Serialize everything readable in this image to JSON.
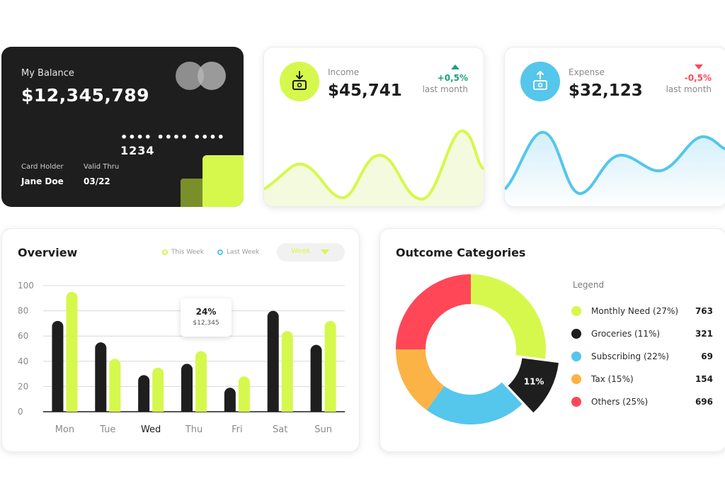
{
  "balance_card": {
    "label": "My Balance",
    "amount": "$12,345,789",
    "card_number": "•••• •••• •••• 1234",
    "holder_label": "Card Holder",
    "holder_name": "Jane Doe",
    "valid_label": "Valid Thru",
    "valid_value": "03/22"
  },
  "income": {
    "title": "Income",
    "value": "$45,741",
    "change": "+0,5%",
    "sub": "last month",
    "accent": "#d6f84c",
    "icon": "download-wallet-icon"
  },
  "expense": {
    "title": "Expense",
    "value": "$32,123",
    "change": "-0,5%",
    "sub": "last month",
    "accent": "#55c6ec",
    "icon": "upload-wallet-icon"
  },
  "overview": {
    "title": "Overview",
    "legend_this": "This Week",
    "legend_last": "Last Week",
    "select_value": "Week",
    "tooltip_percent": "24%",
    "tooltip_amount": "$12,345",
    "y_ticks": [
      "100",
      "80",
      "60",
      "40",
      "20",
      "0"
    ],
    "days": [
      "Mon",
      "Tue",
      "Wed",
      "Thu",
      "Fri",
      "Sat",
      "Sun"
    ]
  },
  "chart_data": {
    "type": "bar",
    "categories": [
      "Mon",
      "Tue",
      "Wed",
      "Thu",
      "Fri",
      "Sat",
      "Sun"
    ],
    "series": [
      {
        "name": "Last Week",
        "values": [
          72,
          55,
          29,
          38,
          19,
          80,
          53
        ]
      },
      {
        "name": "This Week",
        "values": [
          95,
          42,
          35,
          48,
          28,
          64,
          72
        ]
      }
    ],
    "ylim": [
      0,
      100
    ],
    "colors": {
      "last": "#1f1e1e",
      "this": "#d6f84c"
    }
  },
  "outcome": {
    "title": "Outcome Categories",
    "legend_title": "Legend",
    "highlight_label": "11%",
    "items": [
      {
        "name": "Monthly Need (27%)",
        "count": "763",
        "color": "#d6f84c",
        "pct": 27
      },
      {
        "name": "Groceries (11%)",
        "count": "321",
        "color": "#1f1e1e",
        "pct": 11
      },
      {
        "name": "Subscribing (22%)",
        "count": "69",
        "color": "#55c6ec",
        "pct": 22
      },
      {
        "name": "Tax (15%)",
        "count": "154",
        "color": "#fbb345",
        "pct": 15
      },
      {
        "name": "Others (25%)",
        "count": "696",
        "color": "#ff4757",
        "pct": 25
      }
    ]
  }
}
